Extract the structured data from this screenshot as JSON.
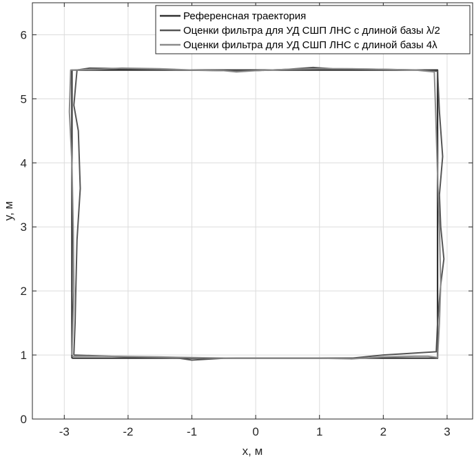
{
  "chart_data": {
    "type": "line",
    "xlabel": "x, м",
    "ylabel": "y, м",
    "xlim": [
      -3.5,
      3.4
    ],
    "ylim": [
      0,
      6.5
    ],
    "xticks": [
      -3,
      -2,
      -1,
      0,
      1,
      2,
      3
    ],
    "yticks": [
      0,
      1,
      2,
      3,
      4,
      5,
      6
    ],
    "xtick_labels": [
      "-3",
      "-2",
      "-1",
      "0",
      "1",
      "2",
      "3"
    ],
    "ytick_labels": [
      "0",
      "1",
      "2",
      "3",
      "4",
      "5",
      "6"
    ],
    "grid": true,
    "legend_position": "top-right",
    "series": [
      {
        "name": "Референсная траектория",
        "color": "#303030",
        "x": [
          -2.88,
          2.85,
          2.85,
          -2.88,
          -2.88
        ],
        "y": [
          0.95,
          0.95,
          5.45,
          5.45,
          0.95
        ]
      },
      {
        "name": "Оценки фильтра для УД СШП ЛНС с длиной базы λ/2",
        "color": "#555555",
        "x": [
          -2.85,
          -2.3,
          -1.6,
          -1.2,
          -1.0,
          -0.5,
          0.5,
          1.5,
          2.0,
          2.5,
          2.83,
          2.85,
          2.9,
          2.95,
          2.9,
          2.88,
          2.93,
          2.88,
          2.85,
          2.6,
          2.0,
          1.2,
          0.9,
          0.5,
          0.0,
          -0.5,
          -1.2,
          -2.0,
          -2.6,
          -2.8,
          -2.85,
          -2.78,
          -2.75,
          -2.8,
          -2.82,
          -2.83,
          -2.85
        ],
        "y": [
          1.0,
          0.98,
          0.96,
          0.95,
          0.92,
          0.95,
          0.95,
          0.95,
          1.0,
          1.03,
          1.05,
          1.5,
          2.1,
          2.5,
          3.0,
          3.5,
          4.1,
          4.8,
          5.43,
          5.45,
          5.46,
          5.47,
          5.49,
          5.46,
          5.44,
          5.44,
          5.45,
          5.47,
          5.48,
          5.45,
          4.9,
          4.5,
          3.6,
          2.8,
          2.0,
          1.5,
          1.0
        ]
      },
      {
        "name": "Оценки фильтра для УД СШП ЛНС с длиной базы 4λ",
        "color": "#8a8a8a",
        "x": [
          -2.88,
          -2.3,
          -1.5,
          -1.0,
          -0.3,
          0.5,
          1.0,
          1.5,
          2.0,
          2.5,
          2.7,
          2.85,
          2.88,
          2.9,
          2.88,
          2.85,
          2.82,
          2.8,
          2.5,
          2.0,
          1.5,
          1.0,
          0.5,
          0.0,
          -0.3,
          -0.5,
          -1.0,
          -1.5,
          -2.1,
          -2.5,
          -2.9,
          -2.92,
          -2.88,
          -2.86,
          -2.85,
          -2.88
        ],
        "y": [
          0.98,
          0.98,
          0.97,
          0.96,
          0.95,
          0.95,
          0.95,
          0.94,
          0.97,
          0.98,
          0.98,
          0.96,
          1.5,
          2.1,
          3.0,
          3.8,
          4.8,
          5.42,
          5.45,
          5.46,
          5.47,
          5.47,
          5.46,
          5.44,
          5.42,
          5.44,
          5.45,
          5.47,
          5.48,
          5.46,
          5.45,
          4.8,
          4.0,
          3.0,
          2.0,
          1.0
        ]
      }
    ]
  }
}
